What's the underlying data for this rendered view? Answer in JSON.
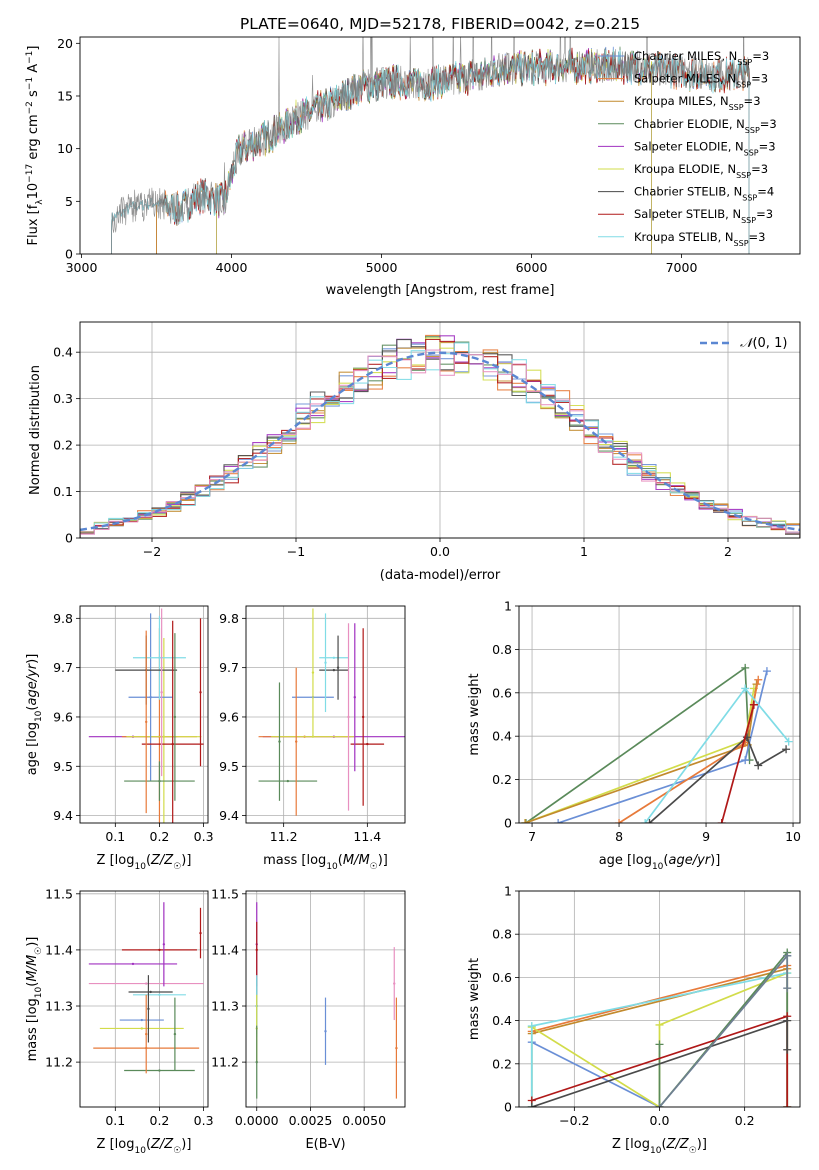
{
  "chart_data": [
    {
      "id": "spectrum",
      "type": "line",
      "title": "PLATE=0640, MJD=52178, FIBERID=0042, z=0.215",
      "xlabel": "wavelength [Angstrom, rest frame]",
      "ylabel": "Flux [f",
      "xlim": [
        2990,
        7790
      ],
      "ylim": [
        0,
        20.6
      ],
      "xticks": [
        3000,
        4000,
        5000,
        6000,
        7000
      ],
      "yticks": [
        0,
        5,
        10,
        15,
        20
      ],
      "grid": false,
      "legend_position": "upper right",
      "continuum": {
        "x": [
          3200,
          3350,
          3500,
          3650,
          3800,
          3950,
          4050,
          4250,
          4450,
          4650,
          4850,
          5050,
          5300,
          5550,
          5800,
          6050,
          6300,
          6600,
          6900,
          7200,
          7450
        ],
        "y": [
          3.4,
          4.5,
          4.9,
          4.2,
          5.6,
          5.0,
          9.8,
          11.2,
          13.0,
          14.2,
          15.8,
          16.3,
          16.2,
          16.7,
          17.6,
          17.7,
          17.8,
          17.9,
          17.5,
          16.9,
          17.1
        ]
      },
      "series": [
        {
          "name": "Chabrier MILES",
          "nssp": "3",
          "color": "#6a8fd6",
          "start": 3500,
          "end": 7450
        },
        {
          "name": "Salpeter MILES",
          "nssp": "3",
          "color": "#e77a3a",
          "start": 3500,
          "end": 7450
        },
        {
          "name": "Kroupa MILES",
          "nssp": "3",
          "color": "#c28a2d",
          "start": 3500,
          "end": 7450
        },
        {
          "name": "Chabrier ELODIE",
          "nssp": "3",
          "color": "#5a8a5a",
          "start": 3900,
          "end": 6800
        },
        {
          "name": "Salpeter ELODIE",
          "nssp": "3",
          "color": "#a030c0",
          "start": 3900,
          "end": 6800
        },
        {
          "name": "Kroupa ELODIE",
          "nssp": "3",
          "color": "#d2dc4a",
          "start": 3900,
          "end": 6800
        },
        {
          "name": "Chabrier STELIB",
          "nssp": "4",
          "color": "#4a4a4a",
          "start": 3200,
          "end": 7450
        },
        {
          "name": "Salpeter STELIB",
          "nssp": "3",
          "color": "#b01818",
          "start": 3200,
          "end": 7450
        },
        {
          "name": "Kroupa STELIB",
          "nssp": "3",
          "color": "#80dce6",
          "start": 3200,
          "end": 7450
        }
      ]
    },
    {
      "id": "residuals",
      "type": "histogram",
      "xlabel": "(data-model)/error",
      "ylabel": "Normed distribution",
      "xlim": [
        -2.5,
        2.5
      ],
      "ylim": [
        0,
        0.465
      ],
      "xticks": [
        -2,
        -1,
        0,
        1,
        2
      ],
      "yticks": [
        0.0,
        0.1,
        0.2,
        0.3,
        0.4
      ],
      "grid": true,
      "legend_position": "upper right",
      "reference_curve": {
        "name": "N(0,1)",
        "mean": 0,
        "sigma": 1,
        "color": "#5b87d2",
        "style": "dashed"
      },
      "bin_width": 0.1,
      "colors": [
        "#6a8fd6",
        "#e77a3a",
        "#c28a2d",
        "#5a8a5a",
        "#a030c0",
        "#d2dc4a",
        "#4a4a4a",
        "#b01818",
        "#80dce6",
        "#e890c0"
      ]
    },
    {
      "id": "z-age",
      "type": "scatter",
      "xlabel": "Z [log10(Z/Z☉)]",
      "ylabel": "age [log10(age/yr)]",
      "xlim": [
        0.02,
        0.31
      ],
      "ylim": [
        9.385,
        9.825
      ],
      "xticks": [
        0.1,
        0.2,
        0.3
      ],
      "yticks": [
        9.4,
        9.5,
        9.6,
        9.7,
        9.8
      ],
      "grid": true,
      "points": [
        {
          "x": 0.14,
          "xe": 0.1,
          "y": 9.56,
          "ye": 0,
          "c": "#a030c0"
        },
        {
          "x": 0.2,
          "xe": 0.085,
          "y": 9.56,
          "ye": 0.22,
          "c": "#e77a3a"
        },
        {
          "x": 0.21,
          "xe": 0.085,
          "y": 9.56,
          "ye": 0.2,
          "c": "#d2dc4a"
        },
        {
          "x": 0.18,
          "xe": 0.05,
          "y": 9.64,
          "ye": 0.17,
          "c": "#6a8fd6"
        },
        {
          "x": 0.2,
          "xe": 0.06,
          "y": 9.72,
          "ye": 0.085,
          "c": "#80dce6"
        },
        {
          "x": 0.17,
          "xe": 0.07,
          "y": 9.695,
          "ye": 0.07,
          "c": "#4a4a4a"
        },
        {
          "x": 0.2,
          "xe": 0.08,
          "y": 9.47,
          "ye": 0.04,
          "c": "#5a8a5a"
        },
        {
          "x": 0.23,
          "xe": 0.07,
          "y": 9.545,
          "ye": 0.25,
          "c": "#b01818"
        },
        {
          "x": 0.17,
          "xe": 0,
          "y": 9.59,
          "ye": 0.185,
          "c": "#e77a3a"
        },
        {
          "x": 0.205,
          "xe": 0,
          "y": 9.65,
          "ye": 0.17,
          "c": "#e890c0"
        },
        {
          "x": 0.235,
          "xe": 0,
          "y": 9.6,
          "ye": 0.17,
          "c": "#5a8a5a"
        },
        {
          "x": 0.293,
          "xe": 0,
          "y": 9.65,
          "ye": 0.15,
          "c": "#b01818"
        }
      ]
    },
    {
      "id": "mass-age",
      "type": "scatter",
      "xlabel": "mass [log10(M/M☉)]",
      "ylabel": "",
      "xlim": [
        11.11,
        11.49
      ],
      "ylim": [
        9.385,
        9.825
      ],
      "xticks": [
        11.2,
        11.4
      ],
      "yticks": [
        9.4,
        9.5,
        9.6,
        9.7,
        9.8
      ],
      "grid": true,
      "points": [
        {
          "x": 11.32,
          "xe": 0.17,
          "y": 9.56,
          "ye": 0,
          "c": "#a030c0"
        },
        {
          "x": 11.25,
          "xe": 0.11,
          "y": 9.56,
          "ye": 0,
          "c": "#e77a3a"
        },
        {
          "x": 11.27,
          "xe": 0.1,
          "y": 9.56,
          "ye": 0,
          "c": "#d2dc4a"
        },
        {
          "x": 11.27,
          "xe": 0.05,
          "y": 9.64,
          "ye": 0,
          "c": "#6a8fd6"
        },
        {
          "x": 11.32,
          "xe": 0.035,
          "y": 9.72,
          "ye": 0,
          "c": "#80dce6"
        },
        {
          "x": 11.32,
          "xe": 0.035,
          "y": 9.695,
          "ye": 0,
          "c": "#4a4a4a"
        },
        {
          "x": 11.21,
          "xe": 0.07,
          "y": 9.47,
          "ye": 0,
          "c": "#5a8a5a"
        },
        {
          "x": 11.4,
          "xe": 0.04,
          "y": 9.545,
          "ye": 0,
          "c": "#b01818"
        },
        {
          "x": 11.19,
          "xe": 0,
          "y": 9.55,
          "ye": 0.12,
          "c": "#5a8a5a"
        },
        {
          "x": 11.23,
          "xe": 0,
          "y": 9.55,
          "ye": 0.15,
          "c": "#e77a3a"
        },
        {
          "x": 11.27,
          "xe": 0,
          "y": 9.69,
          "ye": 0.13,
          "c": "#d2dc4a"
        },
        {
          "x": 11.3,
          "xe": 0,
          "y": 9.71,
          "ye": 0.1,
          "c": "#80dce6"
        },
        {
          "x": 11.33,
          "xe": 0,
          "y": 9.7,
          "ye": 0.065,
          "c": "#4a4a4a"
        },
        {
          "x": 11.355,
          "xe": 0,
          "y": 9.6,
          "ye": 0.19,
          "c": "#e890c0"
        },
        {
          "x": 11.37,
          "xe": 0,
          "y": 9.64,
          "ye": 0.15,
          "c": "#a030c0"
        },
        {
          "x": 11.39,
          "xe": 0,
          "y": 9.6,
          "ye": 0.18,
          "c": "#b01818"
        }
      ]
    },
    {
      "id": "age-weight",
      "type": "line",
      "xlabel": "age [log10(age/yr)]",
      "ylabel": "mass weight",
      "xlim": [
        6.85,
        10.08
      ],
      "ylim": [
        0,
        1
      ],
      "xticks": [
        7,
        8,
        9,
        10
      ],
      "yticks": [
        0.0,
        0.2,
        0.4,
        0.6,
        0.8,
        1.0
      ],
      "grid": true,
      "lines": [
        {
          "c": "#5a8a5a",
          "x": [
            6.93,
            9.45,
            9.5
          ],
          "y": [
            0.0,
            0.715,
            0.29
          ]
        },
        {
          "c": "#d2dc4a",
          "x": [
            6.92,
            9.45,
            9.55
          ],
          "y": [
            0.0,
            0.38,
            0.62
          ]
        },
        {
          "c": "#c28a2d",
          "x": [
            6.92,
            9.48,
            9.58
          ],
          "y": [
            0.0,
            0.36,
            0.64
          ]
        },
        {
          "c": "#6a8fd6",
          "x": [
            7.3,
            9.45,
            9.7
          ],
          "y": [
            0.0,
            0.29,
            0.7
          ]
        },
        {
          "c": "#e77a3a",
          "x": [
            8.0,
            9.45,
            9.6
          ],
          "y": [
            0.0,
            0.37,
            0.66
          ]
        },
        {
          "c": "#80dce6",
          "x": [
            8.3,
            9.45,
            9.95
          ],
          "y": [
            0.0,
            0.62,
            0.375
          ]
        },
        {
          "c": "#4a4a4a",
          "x": [
            8.35,
            9.47,
            9.6,
            9.92
          ],
          "y": [
            0.0,
            0.395,
            0.265,
            0.34
          ]
        },
        {
          "c": "#b01818",
          "x": [
            9.18,
            9.55,
            9.55
          ],
          "y": [
            0.0,
            0.545,
            0.545
          ]
        }
      ]
    },
    {
      "id": "z-mass",
      "type": "scatter",
      "xlabel": "Z [log10(Z/Z☉)]",
      "ylabel": "mass [log10(M/M☉)]",
      "xlim": [
        0.02,
        0.31
      ],
      "ylim": [
        11.12,
        11.505
      ],
      "xticks": [
        0.1,
        0.2,
        0.3
      ],
      "yticks": [
        11.2,
        11.3,
        11.4,
        11.5
      ],
      "grid": true,
      "points": [
        {
          "x": 0.14,
          "xe": 0.1,
          "y": 11.375,
          "ye": 0,
          "c": "#a030c0"
        },
        {
          "x": 0.17,
          "xe": 0.13,
          "y": 11.34,
          "ye": 0,
          "c": "#e890c0"
        },
        {
          "x": 0.2,
          "xe": 0.085,
          "y": 11.4,
          "ye": 0,
          "c": "#b01818"
        },
        {
          "x": 0.18,
          "xe": 0.05,
          "y": 11.325,
          "ye": 0,
          "c": "#4a4a4a"
        },
        {
          "x": 0.2,
          "xe": 0.06,
          "y": 11.32,
          "ye": 0,
          "c": "#80dce6"
        },
        {
          "x": 0.16,
          "xe": 0.05,
          "y": 11.275,
          "ye": 0,
          "c": "#6a8fd6"
        },
        {
          "x": 0.16,
          "xe": 0.095,
          "y": 11.26,
          "ye": 0,
          "c": "#d2dc4a"
        },
        {
          "x": 0.17,
          "xe": 0.12,
          "y": 11.225,
          "ye": 0,
          "c": "#e77a3a"
        },
        {
          "x": 0.2,
          "xe": 0.08,
          "y": 11.185,
          "ye": 0,
          "c": "#5a8a5a"
        },
        {
          "x": 0.17,
          "xe": 0,
          "y": 11.25,
          "ye": 0.07,
          "c": "#e77a3a"
        },
        {
          "x": 0.175,
          "xe": 0,
          "y": 11.295,
          "ye": 0.06,
          "c": "#4a4a4a"
        },
        {
          "x": 0.21,
          "xe": 0,
          "y": 11.41,
          "ye": 0.075,
          "c": "#a030c0"
        },
        {
          "x": 0.235,
          "xe": 0,
          "y": 11.25,
          "ye": 0.065,
          "c": "#5a8a5a"
        },
        {
          "x": 0.293,
          "xe": 0,
          "y": 11.43,
          "ye": 0.045,
          "c": "#b01818"
        }
      ]
    },
    {
      "id": "ebv-mass",
      "type": "scatter",
      "xlabel": "E(B-V)",
      "ylabel": "",
      "xlim": [
        -0.0005,
        0.0069
      ],
      "ylim": [
        11.12,
        11.505
      ],
      "xticks": [
        0.0,
        0.0025,
        0.005
      ],
      "xticklabels": [
        "0.0000",
        "0.0025",
        "0.0050"
      ],
      "yticks": [
        11.2,
        11.3,
        11.4,
        11.5
      ],
      "grid": true,
      "points": [
        {
          "x": 0.0,
          "xe": 0,
          "y": 11.41,
          "ye": 0.075,
          "c": "#a030c0"
        },
        {
          "x": 0.0,
          "xe": 0,
          "y": 11.4,
          "ye": 0.05,
          "c": "#b01818"
        },
        {
          "x": 0.0,
          "xe": 0,
          "y": 11.3,
          "ye": 0.05,
          "c": "#4a4a4a"
        },
        {
          "x": 0.0,
          "xe": 0,
          "y": 11.3,
          "ye": 0.055,
          "c": "#80dce6"
        },
        {
          "x": 0.0,
          "xe": 0,
          "y": 11.26,
          "ye": 0.06,
          "c": "#d2dc4a"
        },
        {
          "x": 0.0,
          "xe": 0,
          "y": 11.2,
          "ye": 0.065,
          "c": "#5a8a5a"
        },
        {
          "x": 0.0032,
          "xe": 0,
          "y": 11.255,
          "ye": 0.06,
          "c": "#6a8fd6"
        },
        {
          "x": 0.0064,
          "xe": 0,
          "y": 11.34,
          "ye": 0.065,
          "c": "#e890c0"
        },
        {
          "x": 0.0065,
          "xe": 0,
          "y": 11.225,
          "ye": 0.09,
          "c": "#e77a3a"
        }
      ]
    },
    {
      "id": "z-weight",
      "type": "line",
      "xlabel": "Z [log10(Z/Z☉)]",
      "ylabel": "mass weight",
      "xlim": [
        -0.33,
        0.33
      ],
      "ylim": [
        0,
        1
      ],
      "xticks": [
        -0.2,
        0.0,
        0.2
      ],
      "yticks": [
        0.0,
        0.2,
        0.4,
        0.6,
        0.8,
        1.0
      ],
      "grid": true,
      "lines": [
        {
          "c": "#e77a3a",
          "x": [
            -0.3,
            0.3,
            0.3
          ],
          "y": [
            0.35,
            0.655,
            0.0
          ]
        },
        {
          "c": "#c28a2d",
          "x": [
            -0.3,
            0.3,
            0.3
          ],
          "y": [
            0.34,
            0.64,
            0.0
          ]
        },
        {
          "c": "#6a8fd6",
          "x": [
            -0.3,
            -0.3,
            0.0,
            0.3
          ],
          "y": [
            0.0,
            0.3,
            0.0,
            0.7
          ]
        },
        {
          "c": "#d2dc4a",
          "x": [
            -0.3,
            -0.3,
            0.0,
            0.0,
            0.3
          ],
          "y": [
            0.0,
            0.37,
            0.0,
            0.38,
            0.62
          ]
        },
        {
          "c": "#80dce6",
          "x": [
            -0.3,
            -0.3,
            0.3,
            0.3
          ],
          "y": [
            0.0,
            0.375,
            0.62,
            0.0
          ]
        },
        {
          "c": "#5a8a5a",
          "x": [
            0.0,
            0.0,
            0.3,
            0.3
          ],
          "y": [
            0.29,
            0.0,
            0.715,
            0.0
          ]
        },
        {
          "c": "#b01818",
          "x": [
            -0.3,
            0.3,
            0.3
          ],
          "y": [
            0.03,
            0.42,
            0.0
          ]
        },
        {
          "c": "#4a4a4a",
          "x": [
            -0.3,
            0.3,
            0.3
          ],
          "y": [
            0.0,
            0.4,
            0.265
          ]
        },
        {
          "c": "#708090",
          "x": [
            0.0,
            0.3,
            0.3
          ],
          "y": [
            0.0,
            0.7,
            0.55
          ]
        }
      ]
    }
  ]
}
